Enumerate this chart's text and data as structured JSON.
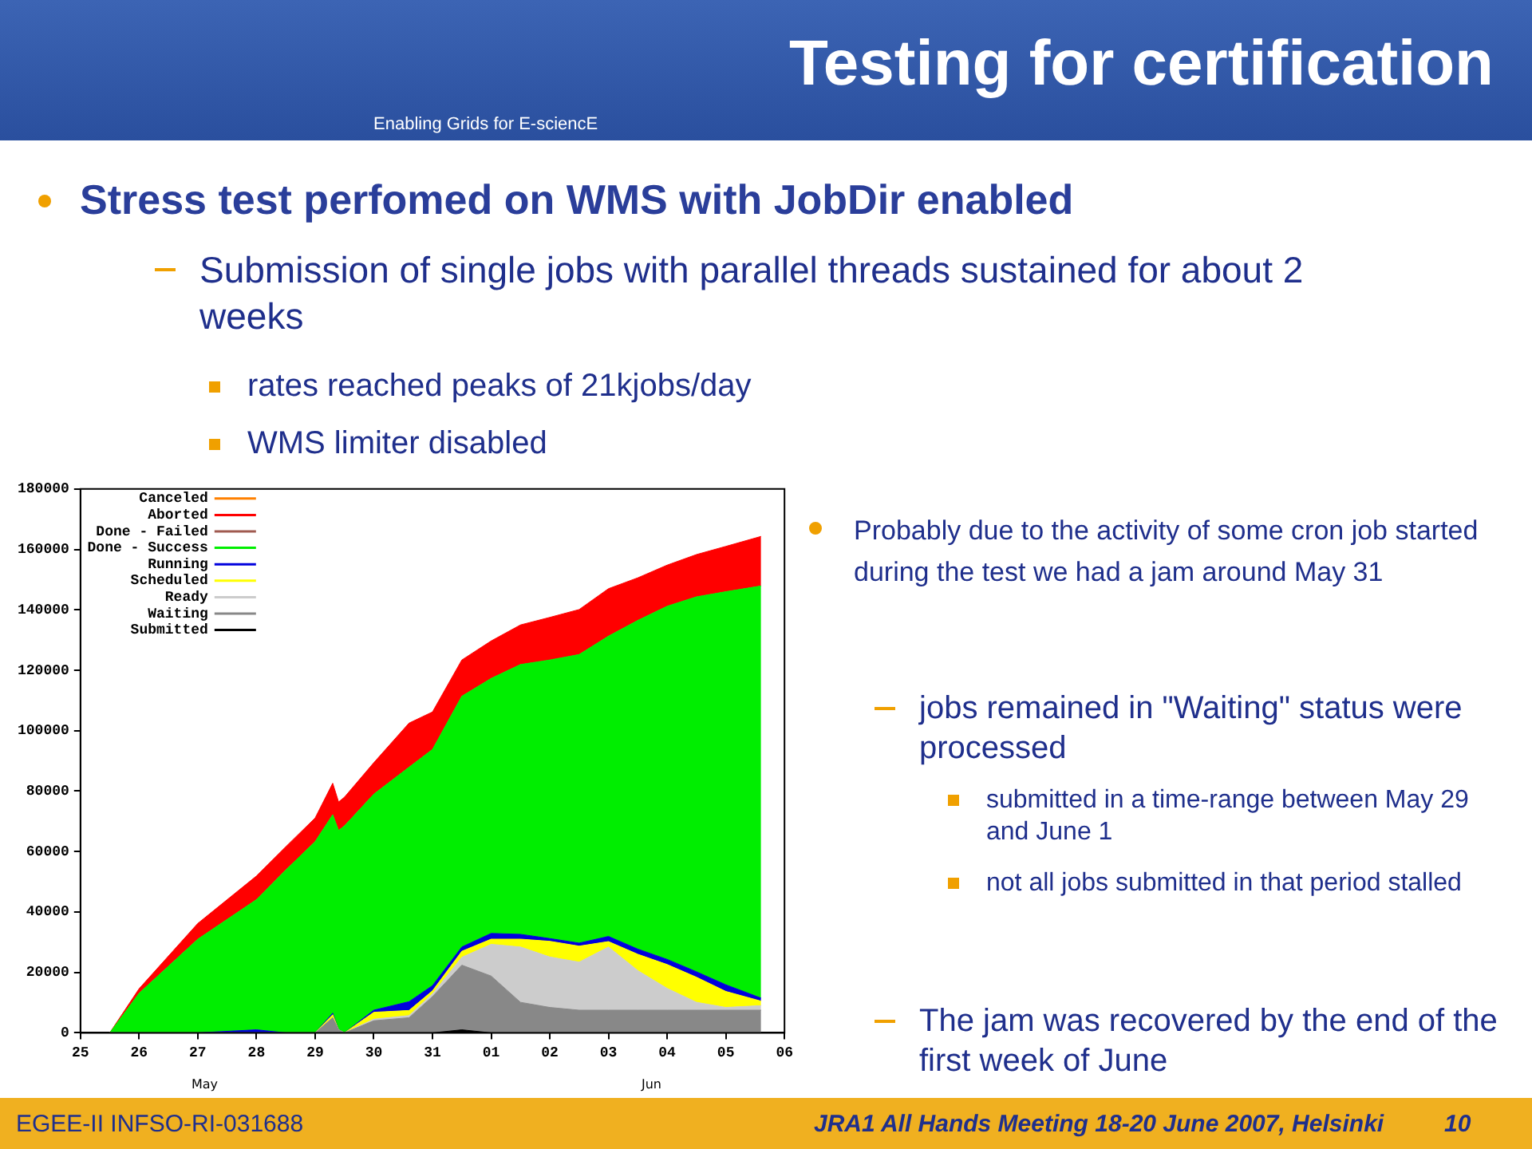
{
  "chart_data": {
    "type": "area",
    "stacked": true,
    "title": "Testing for certification",
    "subtitle": "Stress test perfomed on WMS with JobDir enabled",
    "annotations": [
      "Submission of single jobs with parallel threads sustained for about 2 weeks",
      "rates reached peaks of 21kjobs/day",
      "WMS limiter disabled",
      "Probably due to the activity of some cron job started during the test we had a jam around May 31",
      "jobs remained in \"Waiting\" status were processed",
      "submitted in a time-range between May 29 and June 1",
      "not all jobs submitted in that period stalled",
      "The jam was recovered by the end of the first week of June",
      "Enabling Grids for E-sciencE",
      "EGEE-II INFSO-RI-031688",
      "JRA1 All Hands Meeting 18-20 June 2007, Helsinki",
      "10",
      "May",
      "Jun"
    ],
    "x": [
      "2007-05-25T12:00",
      "2007-05-26",
      "2007-05-27",
      "2007-05-28",
      "2007-05-28T12:00",
      "2007-05-29",
      "2007-05-29T07:12",
      "2007-05-29T09:36",
      "2007-05-29T12:00",
      "2007-05-30",
      "2007-05-30T14:24",
      "2007-05-31",
      "2007-05-31T12:00",
      "2007-06-01",
      "2007-06-01T12:00",
      "2007-06-02",
      "2007-06-02T12:00",
      "2007-06-03",
      "2007-06-03T12:00",
      "2007-06-04",
      "2007-06-04T12:00",
      "2007-06-05",
      "2007-06-05T14:24"
    ],
    "series": [
      {
        "name": "Submitted",
        "color": "#000000",
        "values": [
          0,
          0,
          0,
          0,
          0,
          0,
          0,
          0,
          0,
          0,
          0,
          0,
          1000,
          0,
          0,
          0,
          0,
          0,
          0,
          0,
          0,
          0,
          0
        ]
      },
      {
        "name": "Waiting",
        "color": "#888888",
        "values": [
          0,
          0,
          0,
          0,
          0,
          0,
          5000,
          1000,
          0,
          4000,
          5000,
          12000,
          21400,
          18800,
          10100,
          8400,
          7500,
          7500,
          7500,
          7500,
          7500,
          7500,
          7500
        ]
      },
      {
        "name": "Ready",
        "color": "#cccccc",
        "values": [
          0,
          0,
          0,
          0,
          0,
          0,
          0,
          0,
          0,
          500,
          700,
          900,
          2600,
          10500,
          18300,
          16700,
          15900,
          20900,
          13100,
          7200,
          2600,
          900,
          1500
        ]
      },
      {
        "name": "Scheduled",
        "color": "#ffff00",
        "values": [
          0,
          0,
          0,
          0,
          0,
          0,
          1000,
          0,
          0,
          2300,
          1700,
          1000,
          2000,
          1700,
          2600,
          5200,
          5300,
          1800,
          5400,
          7900,
          8300,
          5300,
          1500
        ]
      },
      {
        "name": "Running",
        "color": "#0000dd",
        "values": [
          0,
          0,
          0,
          1000,
          0,
          0,
          500,
          0,
          0,
          700,
          2900,
          1700,
          1400,
          1900,
          1600,
          900,
          1000,
          1700,
          1700,
          1700,
          1800,
          2200,
          1000
        ]
      },
      {
        "name": "Done - Success",
        "color": "#00ee00",
        "values": [
          0,
          13100,
          31000,
          43100,
          53900,
          63300,
          65700,
          66000,
          68500,
          71500,
          77600,
          78200,
          83000,
          84400,
          89300,
          92200,
          95500,
          99400,
          108800,
          116900,
          124100,
          130100,
          136400
        ]
      },
      {
        "name": "Done - Failed",
        "color": "#a05a50",
        "values": [
          null,
          null,
          null,
          null,
          null,
          null,
          null,
          null,
          null,
          null,
          null,
          null,
          null,
          null,
          null,
          null,
          null,
          null,
          null,
          null,
          null,
          null,
          null
        ]
      },
      {
        "name": "Aborted",
        "color": "#ff0000",
        "values": [
          0,
          1500,
          5200,
          7800,
          7700,
          7800,
          10400,
          9400,
          9500,
          10400,
          14600,
          12400,
          12000,
          12400,
          13100,
          14100,
          14900,
          15700,
          14100,
          13600,
          14000,
          15000,
          16400
        ]
      },
      {
        "name": "Canceled",
        "color": "#ff8000",
        "values": [
          null,
          null,
          null,
          null,
          null,
          null,
          null,
          null,
          null,
          null,
          null,
          null,
          null,
          null,
          null,
          null,
          null,
          null,
          null,
          null,
          null,
          null,
          null
        ]
      }
    ],
    "ylim": [
      0,
      180000
    ],
    "yticks": [
      0,
      20000,
      40000,
      60000,
      80000,
      100000,
      120000,
      140000,
      160000,
      180000
    ],
    "xlim": [
      "2007-05-25",
      "2007-06-06"
    ],
    "xticks": [
      {
        "value": "2007-05-25",
        "label": "25"
      },
      {
        "value": "2007-05-26",
        "label": "26"
      },
      {
        "value": "2007-05-27",
        "label": "27"
      },
      {
        "value": "2007-05-28",
        "label": "28"
      },
      {
        "value": "2007-05-29",
        "label": "29"
      },
      {
        "value": "2007-05-30",
        "label": "30"
      },
      {
        "value": "2007-05-31",
        "label": "31"
      },
      {
        "value": "2007-06-01",
        "label": "01"
      },
      {
        "value": "2007-06-02",
        "label": "02"
      },
      {
        "value": "2007-06-03",
        "label": "03"
      },
      {
        "value": "2007-06-04",
        "label": "04"
      },
      {
        "value": "2007-06-05",
        "label": "05"
      },
      {
        "value": "2007-06-06",
        "label": "06"
      }
    ],
    "legend": "top left",
    "marker": "none",
    "grid": false
  }
}
